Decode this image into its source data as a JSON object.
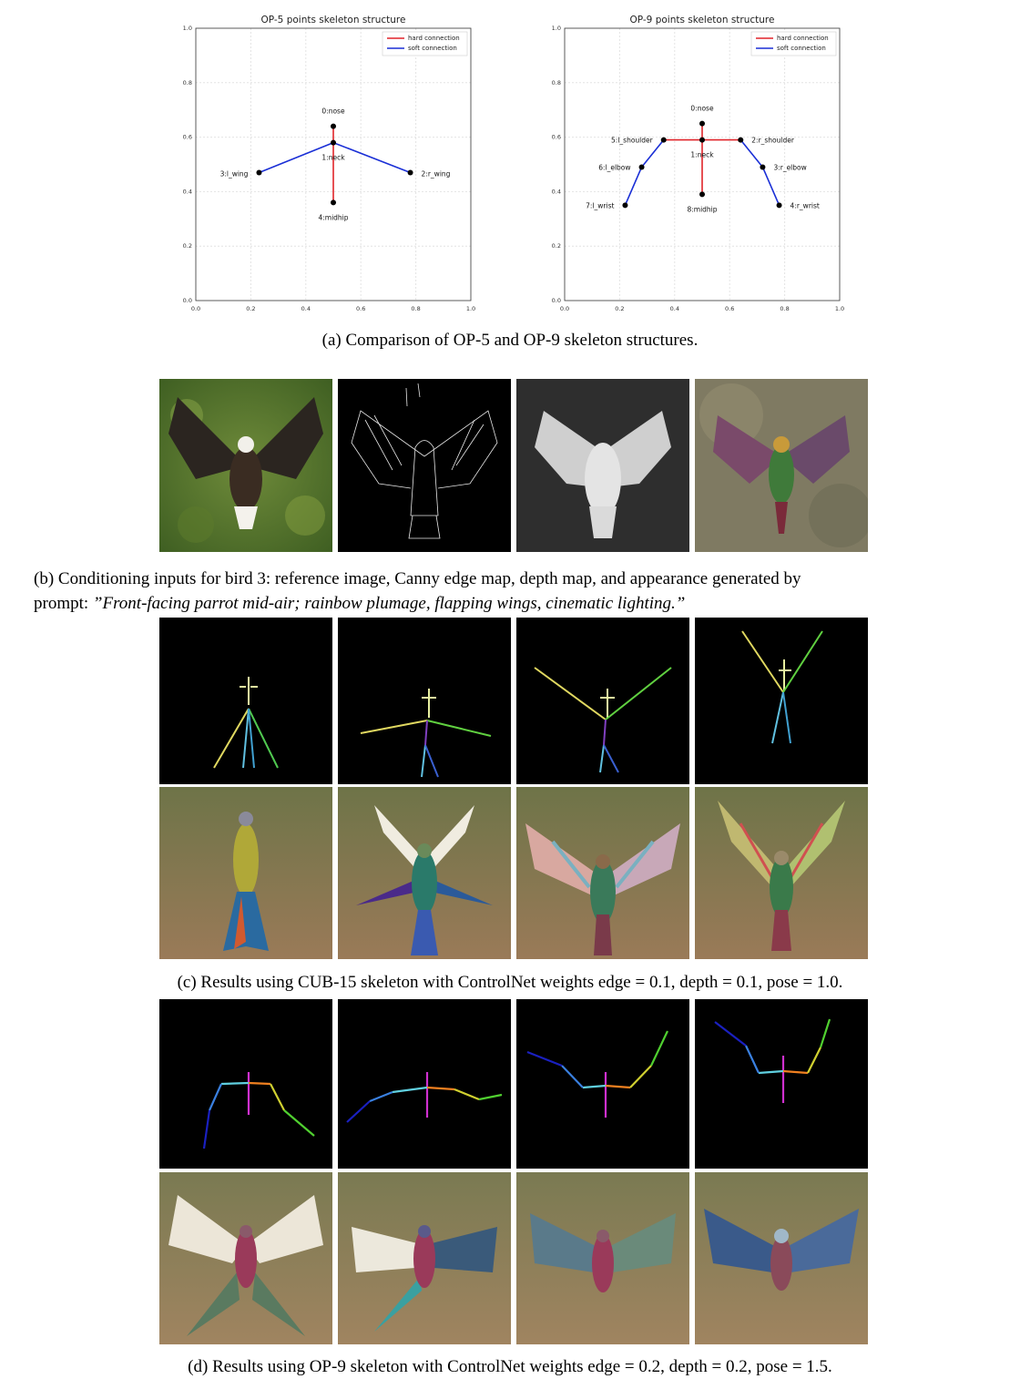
{
  "figure_a": {
    "caption": "(a) Comparison of OP-5 and OP-9 skeleton structures.",
    "legend": {
      "hard": "hard connection",
      "soft": "soft connection"
    },
    "colors": {
      "hard": "#e0242a",
      "soft": "#1a2fd6",
      "joint": "#000000"
    }
  },
  "chart_data": [
    {
      "type": "scatter",
      "title": "OP-5 points skeleton structure",
      "xlim": [
        0,
        1
      ],
      "ylim": [
        0,
        1
      ],
      "ticks": [
        "0.0",
        "0.2",
        "0.4",
        "0.6",
        "0.8",
        "1.0"
      ],
      "grid": true,
      "legend_position": "top-right",
      "points": [
        {
          "label": "0:nose",
          "x": 0.5,
          "y": 0.64
        },
        {
          "label": "1:neck",
          "x": 0.5,
          "y": 0.58
        },
        {
          "label": "2:r_wing",
          "x": 0.78,
          "y": 0.47
        },
        {
          "label": "3:l_wing",
          "x": 0.23,
          "y": 0.47
        },
        {
          "label": "4:midhip",
          "x": 0.5,
          "y": 0.36
        }
      ],
      "hard_connections": [
        [
          0,
          1
        ],
        [
          1,
          4
        ]
      ],
      "soft_connections": [
        [
          1,
          2
        ],
        [
          1,
          3
        ]
      ]
    },
    {
      "type": "scatter",
      "title": "OP-9 points skeleton structure",
      "xlim": [
        0,
        1
      ],
      "ylim": [
        0,
        1
      ],
      "ticks": [
        "0.0",
        "0.2",
        "0.4",
        "0.6",
        "0.8",
        "1.0"
      ],
      "grid": true,
      "legend_position": "top-right",
      "points": [
        {
          "label": "0:nose",
          "x": 0.5,
          "y": 0.65
        },
        {
          "label": "1:neck",
          "x": 0.5,
          "y": 0.59
        },
        {
          "label": "2:r_shoulder",
          "x": 0.64,
          "y": 0.59
        },
        {
          "label": "3:r_elbow",
          "x": 0.72,
          "y": 0.49
        },
        {
          "label": "4:r_wrist",
          "x": 0.78,
          "y": 0.35
        },
        {
          "label": "5:l_shoulder",
          "x": 0.36,
          "y": 0.59
        },
        {
          "label": "6:l_elbow",
          "x": 0.28,
          "y": 0.49
        },
        {
          "label": "7:l_wrist",
          "x": 0.22,
          "y": 0.35
        },
        {
          "label": "8:midhip",
          "x": 0.5,
          "y": 0.39
        }
      ],
      "hard_connections": [
        [
          0,
          1
        ],
        [
          1,
          8
        ],
        [
          1,
          2
        ],
        [
          1,
          5
        ]
      ],
      "soft_connections": [
        [
          2,
          3
        ],
        [
          3,
          4
        ],
        [
          5,
          6
        ],
        [
          6,
          7
        ]
      ]
    }
  ],
  "figure_b": {
    "caption_line1": "(b) Conditioning inputs for bird 3:  reference image, Canny edge map, depth map, and appearance generated by",
    "caption_prefix": "prompt: ",
    "caption_prompt": "”Front-facing parrot mid-air; rainbow plumage, flapping wings, cinematic lighting.”"
  },
  "figure_c": {
    "caption": "(c) Results using CUB-15 skeleton with ControlNet weights edge = 0.1, depth = 0.1, pose = 1.0."
  },
  "figure_d": {
    "caption": "(d) Results using OP-9 skeleton with ControlNet weights edge = 0.2, depth = 0.2, pose = 1.5."
  }
}
